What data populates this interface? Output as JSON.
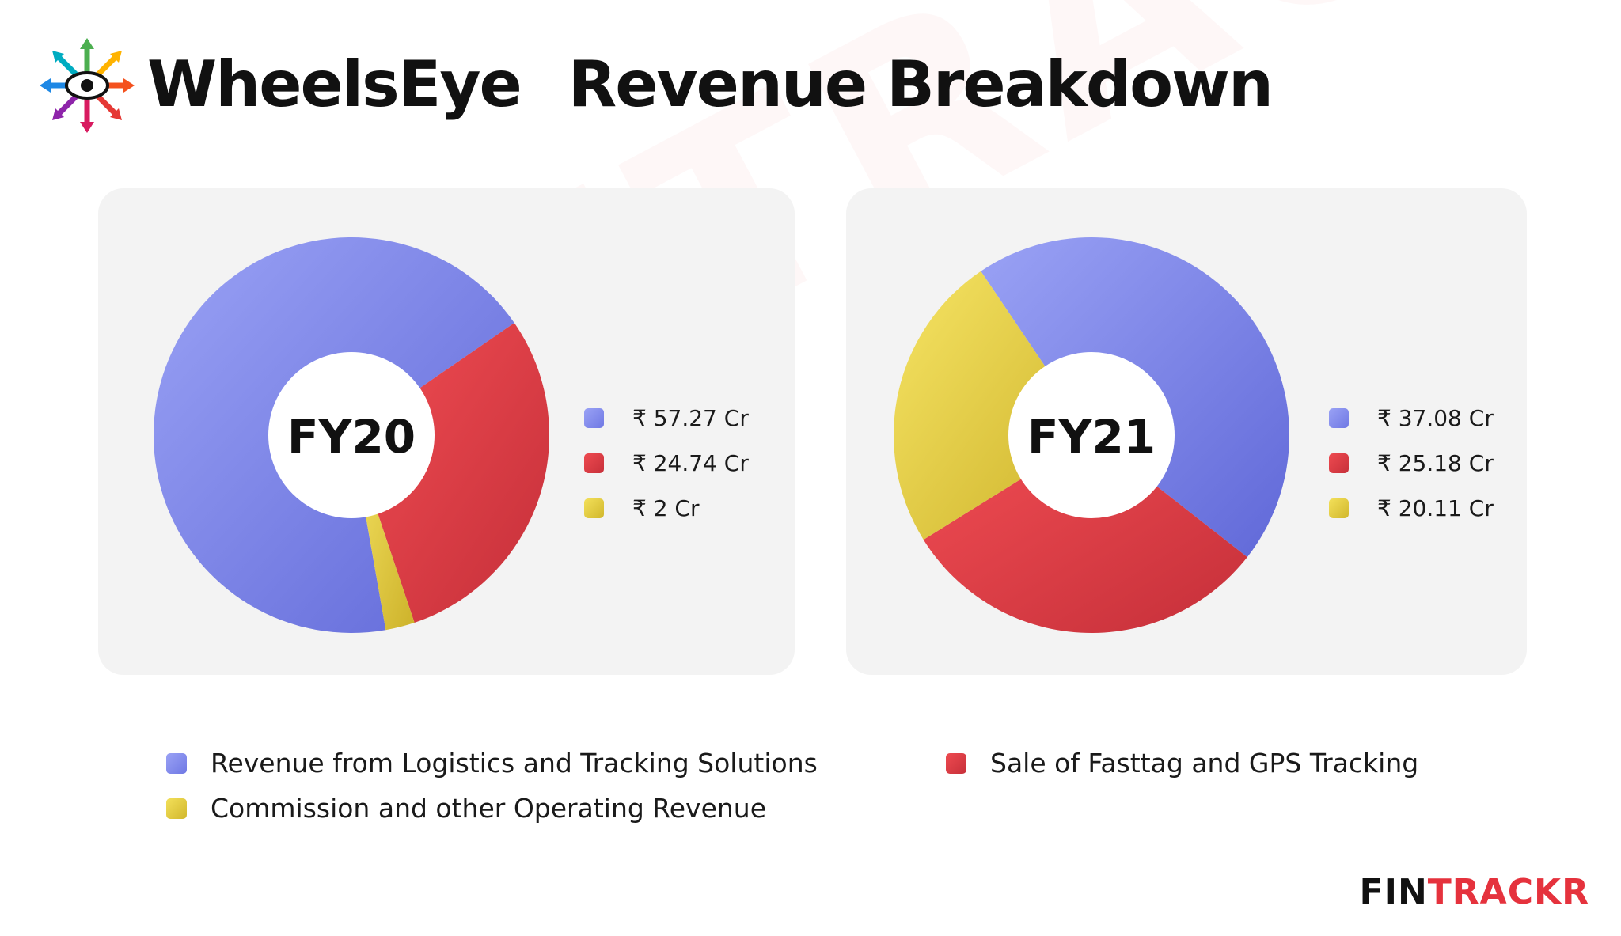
{
  "header": {
    "brand": "WheelsEye",
    "title": "Revenue Breakdown"
  },
  "colors": {
    "logistics": "#7f86ec",
    "fasttag": "#e0393f",
    "commission": "#e8d03f",
    "panel_bg": "#f3f3f3",
    "accent": "#e5323d"
  },
  "chart_data": [
    {
      "type": "pie",
      "center_label": "FY20",
      "start_angle_deg": 80,
      "slices": [
        {
          "series": "logistics",
          "value": 57.27,
          "label": "₹ 57.27 Cr"
        },
        {
          "series": "fasttag",
          "value": 24.74,
          "label": "₹ 24.74 Cr"
        },
        {
          "series": "commission",
          "value": 2,
          "label": "₹ 2 Cr"
        }
      ]
    },
    {
      "type": "pie",
      "center_label": "FY21",
      "start_angle_deg": 236,
      "slices": [
        {
          "series": "logistics",
          "value": 37.08,
          "label": "₹ 37.08 Cr"
        },
        {
          "series": "fasttag",
          "value": 25.18,
          "label": "₹ 25.18 Cr"
        },
        {
          "series": "commission",
          "value": 20.11,
          "label": "₹ 20.11 Cr"
        }
      ]
    }
  ],
  "legend": [
    {
      "series": "logistics",
      "label": "Revenue from Logistics and Tracking Solutions"
    },
    {
      "series": "fasttag",
      "label": "Sale of Fasttag and GPS Tracking"
    },
    {
      "series": "commission",
      "label": "Commission and other Operating Revenue"
    }
  ],
  "footer": {
    "brand_part1": "FIN",
    "brand_part2": "TRACKR"
  },
  "watermark": "FINTRACKR"
}
